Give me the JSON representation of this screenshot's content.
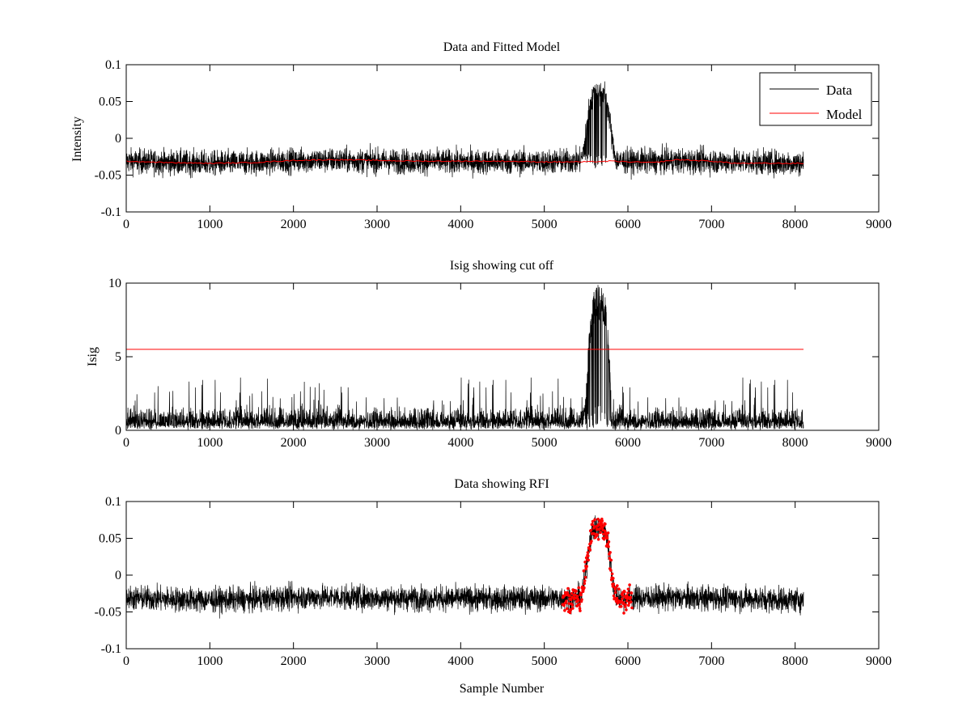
{
  "colors": {
    "data": "#000000",
    "model": "#ff0000",
    "rfi": "#ff0000",
    "axes": "#000000",
    "background": "#ffffff"
  },
  "chart_data": [
    {
      "type": "line",
      "title": "Data and Fitted Model",
      "xlabel": "",
      "ylabel": "Intensity",
      "xlim": [
        0,
        9000
      ],
      "ylim": [
        -0.1,
        0.1
      ],
      "xticks": [
        0,
        1000,
        2000,
        3000,
        4000,
        5000,
        6000,
        7000,
        8000,
        9000
      ],
      "xtick_labels": [
        "0",
        "1000",
        "2000",
        "3000",
        "4000",
        "5000",
        "6000",
        "7000",
        "8000",
        "9000"
      ],
      "yticks": [
        -0.1,
        -0.05,
        0,
        0.05,
        0.1
      ],
      "ytick_labels": [
        "-0.1",
        "-0.05",
        "0",
        "0.05",
        "0.1"
      ],
      "grid": false,
      "legend": "top-right",
      "series": [
        {
          "name": "Data",
          "color": "#000000",
          "x_range": [
            0,
            8100
          ],
          "baseline": [
            [
              0,
              -0.031
            ],
            [
              1000,
              -0.034
            ],
            [
              1500,
              -0.033
            ],
            [
              2000,
              -0.03
            ],
            [
              2500,
              -0.03
            ],
            [
              3000,
              -0.031
            ],
            [
              4000,
              -0.032
            ],
            [
              5000,
              -0.032
            ],
            [
              5300,
              -0.031
            ],
            [
              7000,
              -0.031
            ],
            [
              8100,
              -0.034
            ]
          ],
          "noise_amplitude": 0.012,
          "peak": {
            "center": 5650,
            "height": 0.095,
            "width": 130,
            "range": [
              5400,
              5800
            ]
          },
          "peak_range": [
            5400,
            5800
          ]
        },
        {
          "name": "Model",
          "color": "#ff0000",
          "points": [
            [
              0,
              -0.031
            ],
            [
              500,
              -0.033
            ],
            [
              1000,
              -0.034
            ],
            [
              1500,
              -0.033
            ],
            [
              2000,
              -0.03
            ],
            [
              2500,
              -0.029
            ],
            [
              3000,
              -0.03
            ],
            [
              3500,
              -0.031
            ],
            [
              4000,
              -0.031
            ],
            [
              4500,
              -0.031
            ],
            [
              5000,
              -0.032
            ],
            [
              5500,
              -0.032
            ],
            [
              5800,
              -0.031
            ],
            [
              6000,
              -0.032
            ],
            [
              6300,
              -0.033
            ],
            [
              6600,
              -0.029
            ],
            [
              7000,
              -0.031
            ],
            [
              7300,
              -0.034
            ],
            [
              8100,
              -0.034
            ]
          ]
        }
      ]
    },
    {
      "type": "line",
      "title": "Isig showing cut off",
      "xlabel": "",
      "ylabel": "Isig",
      "xlim": [
        0,
        9000
      ],
      "ylim": [
        0,
        10
      ],
      "xticks": [
        0,
        1000,
        2000,
        3000,
        4000,
        5000,
        6000,
        7000,
        8000,
        9000
      ],
      "xtick_labels": [
        "0",
        "1000",
        "2000",
        "3000",
        "4000",
        "5000",
        "6000",
        "7000",
        "8000",
        "9000"
      ],
      "yticks": [
        0,
        5,
        10
      ],
      "ytick_labels": [
        "0",
        "5",
        "10"
      ],
      "grid": false,
      "series": [
        {
          "color": "#000000",
          "x_range": [
            0,
            8100
          ],
          "baseline_mean": 0.8,
          "noise_max": 3.6,
          "peak": {
            "center": 5650,
            "height": 9.9,
            "range": [
              5420,
              5800
            ]
          }
        },
        {
          "color": "#ff0000",
          "points": [
            [
              0,
              5.5
            ],
            [
              8100,
              5.5
            ]
          ]
        }
      ]
    },
    {
      "type": "scatter",
      "title": "Data showing RFI",
      "xlabel": "Sample Number",
      "ylabel": "",
      "xlim": [
        0,
        9000
      ],
      "ylim": [
        -0.1,
        0.1
      ],
      "xticks": [
        0,
        1000,
        2000,
        3000,
        4000,
        5000,
        6000,
        7000,
        8000,
        9000
      ],
      "xtick_labels": [
        "0",
        "1000",
        "2000",
        "3000",
        "4000",
        "5000",
        "6000",
        "7000",
        "8000",
        "9000"
      ],
      "yticks": [
        -0.1,
        -0.05,
        0,
        0.05,
        0.1
      ],
      "ytick_labels": [
        "-0.1",
        "-0.05",
        "0",
        "0.05",
        "0.1"
      ],
      "grid": false,
      "series": [
        {
          "color": "#000000",
          "x_range": [
            0,
            8100
          ],
          "noise_amplitude": 0.012
        },
        {
          "color": "#ff0000",
          "x_range": [
            5220,
            6050
          ],
          "peak": {
            "center": 5650,
            "height": 0.095,
            "width": 130
          }
        }
      ]
    }
  ]
}
